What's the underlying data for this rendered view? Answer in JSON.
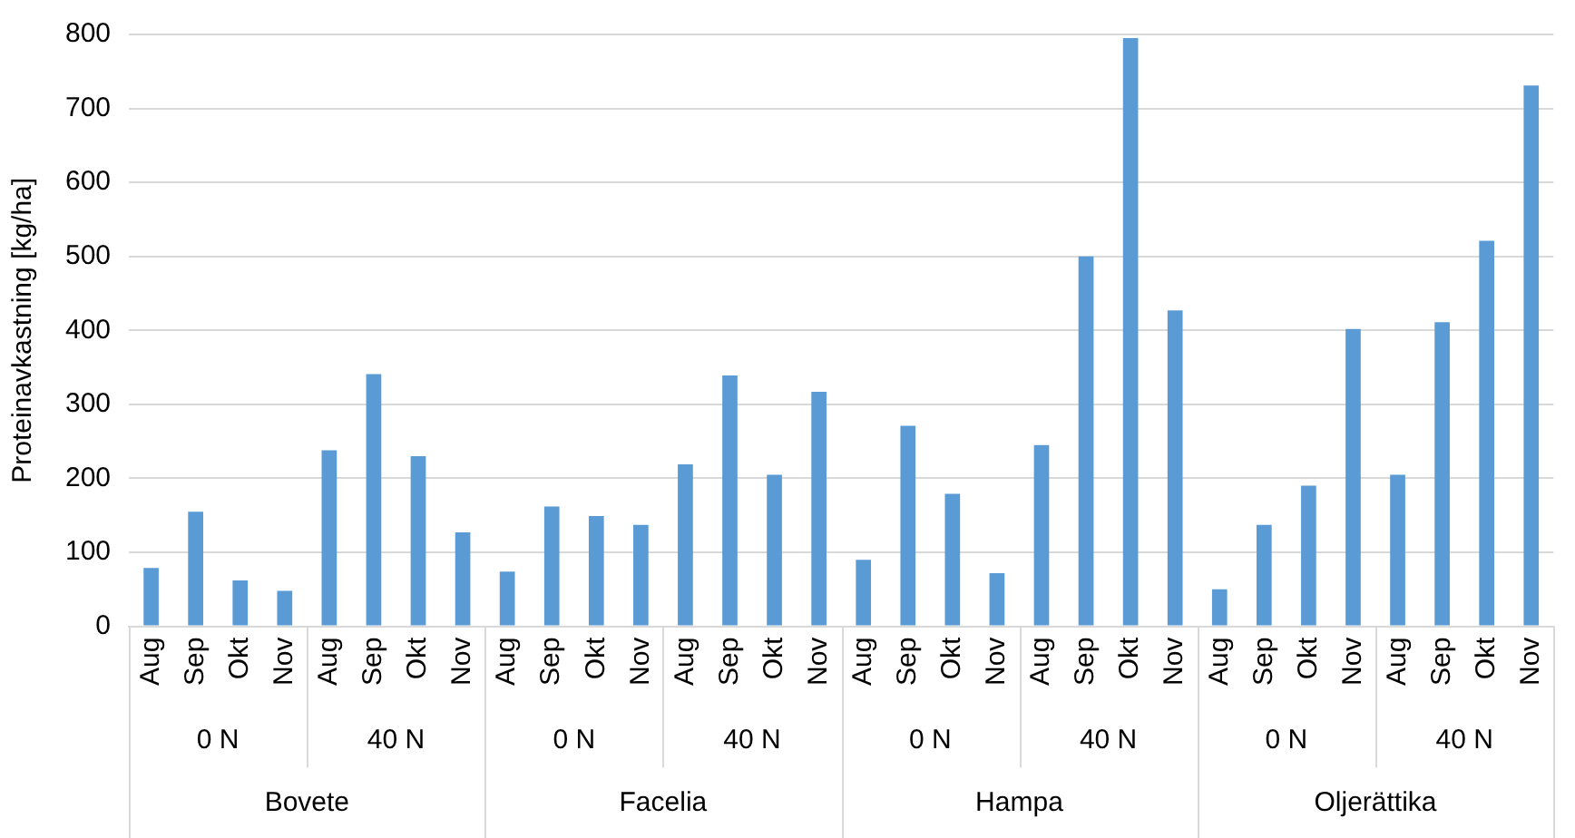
{
  "chart_data": {
    "type": "bar",
    "ylabel": "Proteinavkastning [kg/ha]",
    "categories": [
      "Aug",
      "Sep",
      "Okt",
      "Nov",
      "Aug",
      "Sep",
      "Okt",
      "Nov",
      "Aug",
      "Sep",
      "Okt",
      "Nov",
      "Aug",
      "Sep",
      "Okt",
      "Nov",
      "Aug",
      "Sep",
      "Okt",
      "Nov",
      "Aug",
      "Sep",
      "Okt",
      "Nov",
      "Aug",
      "Sep",
      "Okt",
      "Nov",
      "Aug",
      "Sep",
      "Okt",
      "Nov"
    ],
    "values": [
      79,
      155,
      62,
      48,
      238,
      341,
      230,
      127,
      74,
      162,
      149,
      137,
      219,
      339,
      205,
      317,
      90,
      271,
      179,
      72,
      245,
      500,
      795,
      427,
      50,
      137,
      190,
      402,
      205,
      411,
      521,
      731
    ],
    "color": "#5b9bd5",
    "ylim": [
      0,
      800
    ],
    "yticks": [
      0,
      100,
      200,
      300,
      400,
      500,
      600,
      700,
      800
    ],
    "grid": "y",
    "legend": false,
    "annotations": [
      "0 N",
      "40 N",
      "0 N",
      "40 N",
      "0 N",
      "40 N",
      "0 N",
      "40 N",
      "Bovete",
      "Facelia",
      "Hampa",
      "Oljerättika"
    ]
  }
}
